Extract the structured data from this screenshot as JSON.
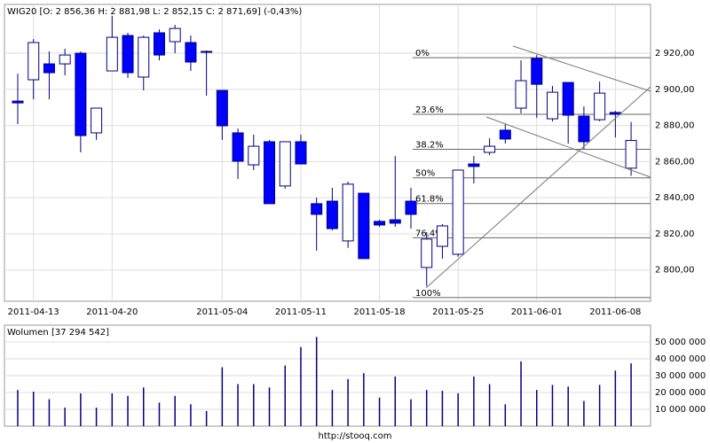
{
  "source": "http://stooq.com",
  "chart_data": [
    {
      "type": "candlestick",
      "title": "WIG20 [O: 2 856,36  H: 2 881,98  L: 2 852,15  C: 2 871,69] (-0,43%)",
      "categories": [
        null,
        "2011-04-13",
        null,
        null,
        null,
        null,
        "2011-04-20",
        null,
        null,
        null,
        null,
        null,
        null,
        "2011-05-04",
        null,
        null,
        null,
        null,
        "2011-05-11",
        null,
        null,
        null,
        null,
        "2011-05-18",
        null,
        null,
        null,
        null,
        "2011-05-25",
        null,
        null,
        null,
        null,
        "2011-06-01",
        null,
        null,
        null,
        null,
        "2011-06-08",
        null
      ],
      "open": [
        2893.5,
        2905.3,
        2914.1,
        2914.1,
        2920,
        2875.9,
        2910.2,
        2929.8,
        2906.8,
        2931.3,
        2926.4,
        2925.9,
        2921,
        2899.4,
        2875.9,
        2858.2,
        2871,
        2846.5,
        2871,
        2836.7,
        2838.1,
        2816.1,
        2842.5,
        2826.9,
        2827.8,
        2838.1,
        2801.4,
        2813.1,
        2808.7,
        2858.7,
        2865.1,
        2877.4,
        2889.6,
        2917.1,
        2883.7,
        2903.8,
        2885.2,
        2883.2,
        2887.2,
        2856.36
      ],
      "high": [
        2908.7,
        2927.8,
        2921,
        2922.5,
        2921,
        2889.6,
        2940.6,
        2931.3,
        2929.8,
        2933.2,
        2935.7,
        2929.8,
        2921.5,
        2899.4,
        2878.3,
        2874.9,
        2872,
        2871,
        2874.9,
        2840.1,
        2845.5,
        2848.9,
        2842.5,
        2827.8,
        2863.1,
        2845.5,
        2821,
        2825.4,
        2855.3,
        2863.1,
        2872.9,
        2880.8,
        2916.1,
        2919,
        2901.9,
        2903.8,
        2890.6,
        2904.3,
        2888.1,
        2881.98
      ],
      "low": [
        2880.8,
        2894.5,
        2894.5,
        2907.7,
        2865.1,
        2872,
        2910.2,
        2906.3,
        2899.4,
        2916.1,
        2920,
        2910.2,
        2896.5,
        2872,
        2850.4,
        2855.3,
        2836.7,
        2845,
        2858.7,
        2810.7,
        2822,
        2812.2,
        2806.3,
        2823.9,
        2823.9,
        2822.9,
        2791.1,
        2806.3,
        2807.3,
        2847.9,
        2863.6,
        2870,
        2886.7,
        2884.2,
        2882.3,
        2870,
        2867,
        2882.3,
        2873.4,
        2852.15
      ],
      "close": [
        2892.5,
        2925.9,
        2909.2,
        2919,
        2874.4,
        2889.6,
        2928.8,
        2909.2,
        2928.8,
        2919,
        2933.7,
        2915.1,
        2920.5,
        2879.8,
        2860.2,
        2868.5,
        2836.7,
        2871,
        2858.7,
        2830.8,
        2822.9,
        2847.5,
        2806.3,
        2824.9,
        2825.9,
        2830.8,
        2817.1,
        2824.4,
        2855.3,
        2857.3,
        2868.5,
        2872.5,
        2904.8,
        2902.8,
        2898.4,
        2885.7,
        2871,
        2897.9,
        2886.2,
        2871.69
      ],
      "up_color": "#ffffff",
      "down_color": "#0000ff",
      "ylim": [
        2782.7,
        2947
      ],
      "yticks": [
        {
          "value": 2800,
          "label": "2 800,00"
        },
        {
          "value": 2820,
          "label": "2 820,00"
        },
        {
          "value": 2840,
          "label": "2 840,00"
        },
        {
          "value": 2860,
          "label": "2 860,00"
        },
        {
          "value": 2880,
          "label": "2 880,00"
        },
        {
          "value": 2900,
          "label": "2 900,00"
        },
        {
          "value": 2920,
          "label": "2 920,00"
        }
      ],
      "fib": [
        {
          "label": "0%",
          "value": 2917.5
        },
        {
          "label": "23.6%",
          "value": 2886.2
        },
        {
          "label": "38.2%",
          "value": 2866.8
        },
        {
          "label": "50%",
          "value": 2851
        },
        {
          "label": "61.8%",
          "value": 2836.8
        },
        {
          "label": "76.4%",
          "value": 2817.8
        },
        {
          "label": "100%",
          "value": 2784.7
        }
      ],
      "grid": true
    },
    {
      "type": "bar",
      "title": "Wolumen [37 294 542]",
      "values": [
        21500000,
        20500000,
        16000000,
        11000000,
        19500000,
        11000000,
        19500000,
        18000000,
        23000000,
        14000000,
        18000000,
        13000000,
        9000000,
        35000000,
        25000000,
        25000000,
        23000000,
        36000000,
        47000000,
        53000000,
        21500000,
        28000000,
        31500000,
        17000000,
        29500000,
        16000000,
        21500000,
        21000000,
        19500000,
        29500000,
        25000000,
        13000000,
        38500000,
        21500000,
        24500000,
        23500000,
        15000000,
        24500000,
        33000000,
        37294542
      ],
      "color": "#000080",
      "ylim": [
        0,
        60000000
      ],
      "yticks": [
        {
          "value": 10000000,
          "label": "10 000 000"
        },
        {
          "value": 20000000,
          "label": "20 000 000"
        },
        {
          "value": 30000000,
          "label": "30 000 000"
        },
        {
          "value": 40000000,
          "label": "40 000 000"
        },
        {
          "value": 50000000,
          "label": "50 000 000"
        }
      ],
      "grid": true
    }
  ]
}
